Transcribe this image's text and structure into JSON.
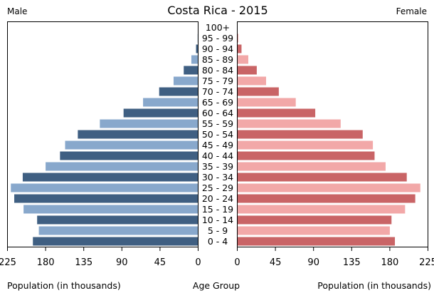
{
  "chart_data": {
    "type": "bar",
    "title": "Costa Rica - 2015",
    "left_header": "Male",
    "right_header": "Female",
    "xlabel_left": "Population (in thousands)",
    "xlabel_center": "Age Group",
    "xlabel_right": "Population (in thousands)",
    "xlim": [
      0,
      225
    ],
    "xticks": [
      0,
      45,
      90,
      135,
      180,
      225
    ],
    "xtick_labels": [
      "0",
      "45",
      "90",
      "135",
      "180",
      "225"
    ],
    "categories": [
      "0 - 4",
      "5 - 9",
      "10 - 14",
      "15 - 19",
      "20 - 24",
      "25 - 29",
      "30 - 34",
      "35 - 39",
      "40 - 44",
      "45 - 49",
      "50 - 54",
      "55 - 59",
      "60 - 64",
      "65 - 69",
      "70 - 74",
      "75 - 79",
      "80 - 84",
      "85 - 89",
      "90 - 94",
      "95 - 99",
      "100+"
    ],
    "series": [
      {
        "name": "Male",
        "values": [
          195,
          188,
          190,
          206,
          217,
          221,
          207,
          180,
          163,
          157,
          142,
          116,
          88,
          65,
          46,
          29,
          17,
          8,
          2.5,
          0.6,
          0.1
        ],
        "colors": [
          "#3f5f82",
          "#88a8cc"
        ]
      },
      {
        "name": "Female",
        "values": [
          186,
          180,
          182,
          198,
          210,
          216,
          200,
          175,
          162,
          160,
          148,
          122,
          92,
          69,
          49,
          34,
          23,
          13,
          5,
          1.3,
          0.2
        ],
        "colors": [
          "#c96466",
          "#f2a8a8"
        ]
      }
    ]
  }
}
